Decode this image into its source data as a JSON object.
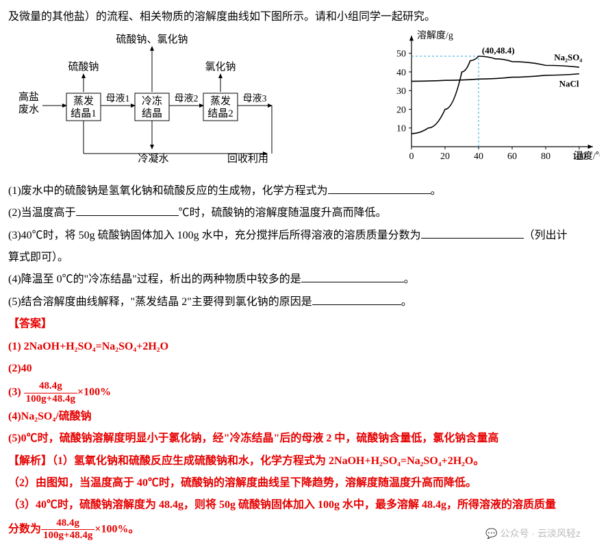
{
  "intro": "及微量的其他盐）的流程、相关物质的溶解度曲线如下图所示。请和小组同学一起研究。",
  "flow": {
    "in_top": "高盐",
    "in_bot": "废水",
    "b1a": "蒸发",
    "b1b": "结晶1",
    "b2a": "冷冻",
    "b2b": "结晶",
    "b3a": "蒸发",
    "b3b": "结晶2",
    "m1": "母液1",
    "m2": "母液2",
    "m3": "母液3",
    "top_mid": "硫酸钠、氯化钠",
    "up1": "硫酸钠",
    "up3": "氯化钠",
    "cond": "冷凝水",
    "recyc": "回收利用"
  },
  "chart": {
    "ylabel": "溶解度/g",
    "xlabel": "温度/℃",
    "point": "(40,48.4)",
    "s1": "Na₂SO₄",
    "s2": "NaCl",
    "yticks": [
      "10",
      "20",
      "30",
      "40",
      "50"
    ],
    "xticks": [
      "0",
      "20",
      "40",
      "60",
      "80",
      "100"
    ],
    "na2so4": [
      [
        0,
        7
      ],
      [
        10,
        10
      ],
      [
        20,
        20
      ],
      [
        30,
        40
      ],
      [
        35,
        46
      ],
      [
        40,
        48.4
      ],
      [
        50,
        47
      ],
      [
        60,
        45.5
      ],
      [
        80,
        43.5
      ],
      [
        100,
        42.5
      ]
    ],
    "nacl": [
      [
        0,
        35
      ],
      [
        20,
        35.5
      ],
      [
        40,
        36.2
      ],
      [
        60,
        37.2
      ],
      [
        80,
        38.2
      ],
      [
        100,
        39
      ]
    ],
    "colors": {
      "axis": "#000",
      "dash": "#2aa8e0",
      "curve": "#000"
    }
  },
  "q1a": "(1)废水中的硫酸钠是氢氧化钠和硫酸反应的生成物，化学方程式为",
  "q1b": "。",
  "q2a": "(2)当温度高于",
  "q2b": "℃时，硫酸钠的溶解度随温度升高而降低。",
  "q3a": "(3)40℃时，将 50g 硫酸钠固体加入 100g 水中，充分搅拌后所得溶液的溶质质量分数为",
  "q3b": "（列出计",
  "q3c": "算式即可）。",
  "q4a": "(4)降温至 0℃的\"冷冻结晶\"过程，析出的两种物质中较多的是",
  "q4b": "。",
  "q5a": "(5)结合溶解度曲线解释，\"蒸发结晶 2\"主要得到氯化钠的原因是",
  "q5b": "。",
  "ans_h": "【答案】",
  "a1": "(1) 2NaOH+H₂SO₄=Na₂SO₄+2H₂O",
  "a2": "(2)40",
  "a3a": "(3) ",
  "a3t": "48.4g",
  "a3b": "100g+48.4g",
  "a3c": "×100%",
  "a4": "(4)Na₂SO₄/硫酸钠",
  "a5": "(5)0℃时，硫酸钠溶解度明显小于氯化钠，经\"冷冻结晶\"后的母液 2 中，硫酸钠含量低，氯化钠含量高",
  "ex_h": "【解析】",
  "ex1": "（1）氢氧化钠和硫酸反应生成硫酸钠和水，化学方程式为 2NaOH+H₂SO₄=Na₂SO₄+2H₂O。",
  "ex2": "（2）由图知，当温度高于 40℃时，硫酸钠的溶解度曲线呈下降趋势，溶解度随温度升高而降低。",
  "ex3a": "（3）40℃时，硫酸钠溶解度为 48.4g，则将 50g 硫酸钠固体加入 100g 水中，最多溶解 48.4g，所得溶液的溶质质量",
  "ex3b": "分数为",
  "ex3t": "48.4g",
  "ex3bb": "100g+48.4g",
  "ex3c": "×100%。",
  "wm": "公众号 · 云淡风轻z"
}
